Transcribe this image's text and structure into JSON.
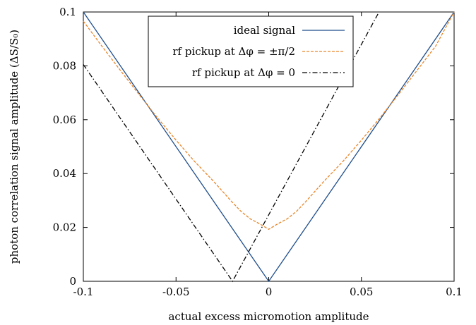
{
  "chart_data": {
    "type": "line",
    "title": "",
    "xlabel": "actual excess micromotion amplitude",
    "ylabel": "photon correlation signal amplitude (ΔS/S₀)",
    "xlim": [
      -0.1,
      0.1
    ],
    "ylim": [
      0,
      0.1
    ],
    "x_ticks": [
      -0.1,
      -0.05,
      0,
      0.05,
      0.1
    ],
    "x_tick_labels": [
      "-0.1",
      "-0.05",
      "0",
      "0.05",
      "0.1"
    ],
    "y_ticks": [
      0,
      0.02,
      0.04,
      0.06,
      0.08,
      0.1
    ],
    "y_tick_labels": [
      "0",
      "0.02",
      "0.04",
      "0.06",
      "0.08",
      "0.1"
    ],
    "grid": false,
    "legend_position": "top-center",
    "series": [
      {
        "name": "ideal signal",
        "color": "#1f4e8c",
        "dash": "solid",
        "x": [
          -0.1,
          0.0,
          0.1
        ],
        "y": [
          0.1,
          0.0,
          0.1
        ]
      },
      {
        "name": "rf pickup at Δφ = ±π/2",
        "color": "#e8862a",
        "dash": "dashed",
        "x": [
          -0.1,
          -0.09,
          -0.08,
          -0.07,
          -0.06,
          -0.05,
          -0.04,
          -0.03,
          -0.02,
          -0.015,
          -0.01,
          -0.005,
          0.0,
          0.005,
          0.01,
          0.015,
          0.02,
          0.03,
          0.04,
          0.05,
          0.06,
          0.07,
          0.08,
          0.09,
          0.1
        ],
        "y": [
          0.0966,
          0.0873,
          0.0783,
          0.0694,
          0.0607,
          0.0524,
          0.0445,
          0.0373,
          0.0296,
          0.026,
          0.0232,
          0.0214,
          0.0193,
          0.0214,
          0.0232,
          0.026,
          0.0296,
          0.0373,
          0.0445,
          0.0524,
          0.0607,
          0.0694,
          0.0783,
          0.0873,
          0.1
        ]
      },
      {
        "name": "rf pickup at Δφ = 0",
        "color": "#000000",
        "dash": "dashdot",
        "x": [
          -0.1,
          -0.0195,
          0.0595
        ],
        "y": [
          0.0805,
          0.0,
          0.1
        ]
      }
    ]
  },
  "legend": {
    "items": [
      {
        "label": "ideal signal"
      },
      {
        "label": "rf pickup at Δφ = ±π/2"
      },
      {
        "label": "rf pickup at Δφ = 0"
      }
    ]
  }
}
